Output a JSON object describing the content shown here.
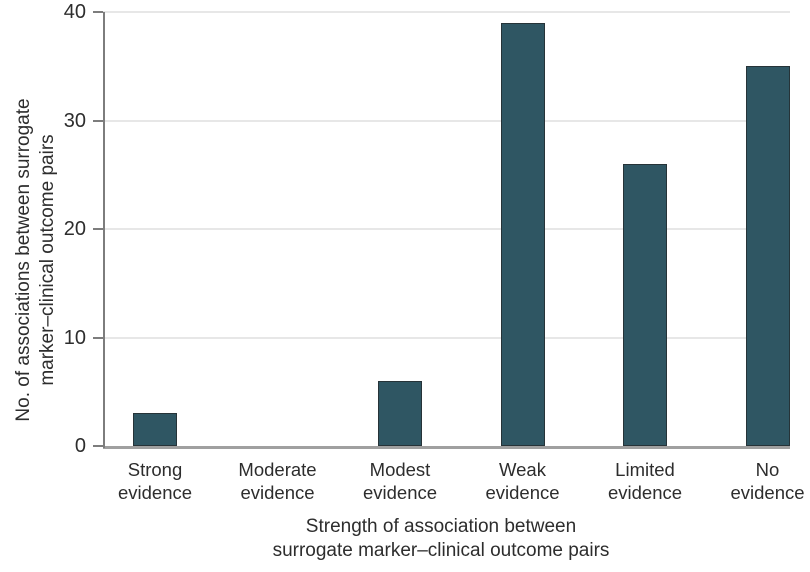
{
  "chart_data": {
    "type": "bar",
    "title": "",
    "categories": [
      "Strong evidence",
      "Moderate evidence",
      "Modest evidence",
      "Weak evidence",
      "Limited evidence",
      "No evidence"
    ],
    "category_label_lines": [
      [
        "Strong",
        "evidence"
      ],
      [
        "Moderate",
        "evidence"
      ],
      [
        "Modest",
        "evidence"
      ],
      [
        "Weak",
        "evidence"
      ],
      [
        "Limited",
        "evidence"
      ],
      [
        "No",
        "evidence"
      ]
    ],
    "values": [
      3,
      0,
      6,
      39,
      26,
      35
    ],
    "xlabel_lines": [
      "Strength of association between",
      "surrogate marker–clinical outcome pairs"
    ],
    "ylabel_lines": [
      "No. of associations between surrogate",
      "marker–clinical outcome pairs"
    ],
    "ylim": [
      0,
      40
    ],
    "yticks": [
      0,
      10,
      20,
      30,
      40
    ],
    "grid": "horizontal-at-10-20-30-40",
    "legend": "none",
    "colors": {
      "bar_fill": "#2f5663",
      "bar_border": "#263338",
      "gridline": "#e7e7e7",
      "axis_line": "#7d7d7d",
      "baseline": "#a0a0a0",
      "text": "#2d2d2d"
    }
  }
}
